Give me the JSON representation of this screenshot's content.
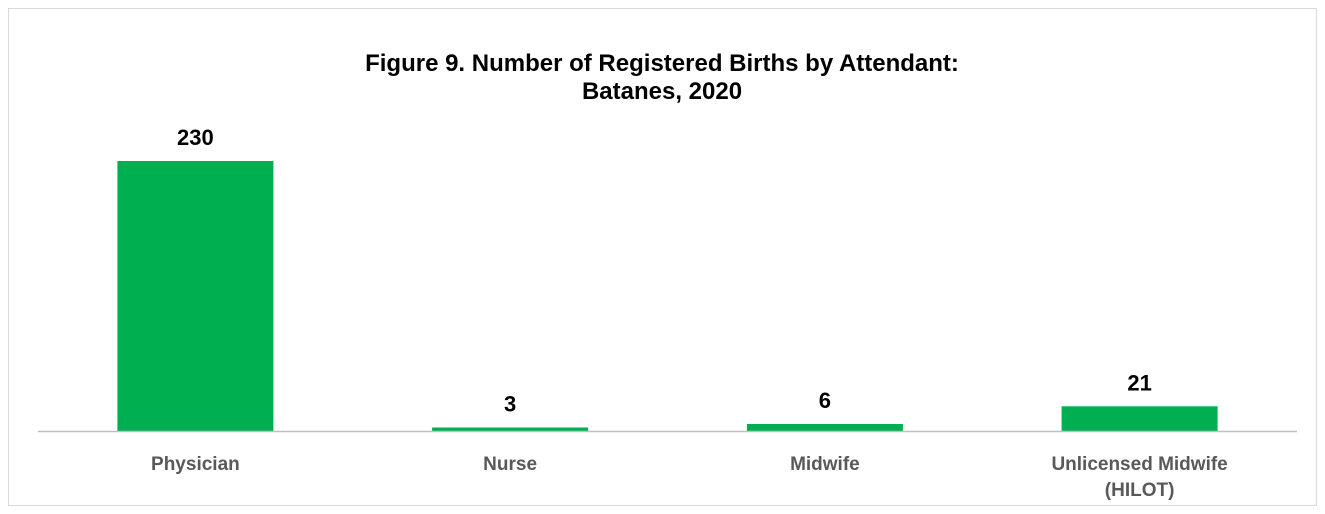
{
  "chart_data": {
    "type": "bar",
    "title": "Figure 9. Number of Registered Births by Attendant:",
    "subtitle": "Batanes, 2020",
    "categories": [
      [
        "Physician"
      ],
      [
        "Nurse"
      ],
      [
        "Midwife"
      ],
      [
        "Unlicensed Midwife",
        "(HILOT)"
      ]
    ],
    "values": [
      230,
      3,
      6,
      21
    ],
    "data_labels": [
      "230",
      "3",
      "6",
      "21"
    ],
    "xlabel": "",
    "ylabel": "",
    "ylim": [
      0,
      230
    ],
    "grid": false,
    "legend": "none",
    "colors": {
      "bar": "#00B050",
      "baseline": "#bfbfbf",
      "category_text": "#595959",
      "frame": "#d9d9d9"
    }
  }
}
